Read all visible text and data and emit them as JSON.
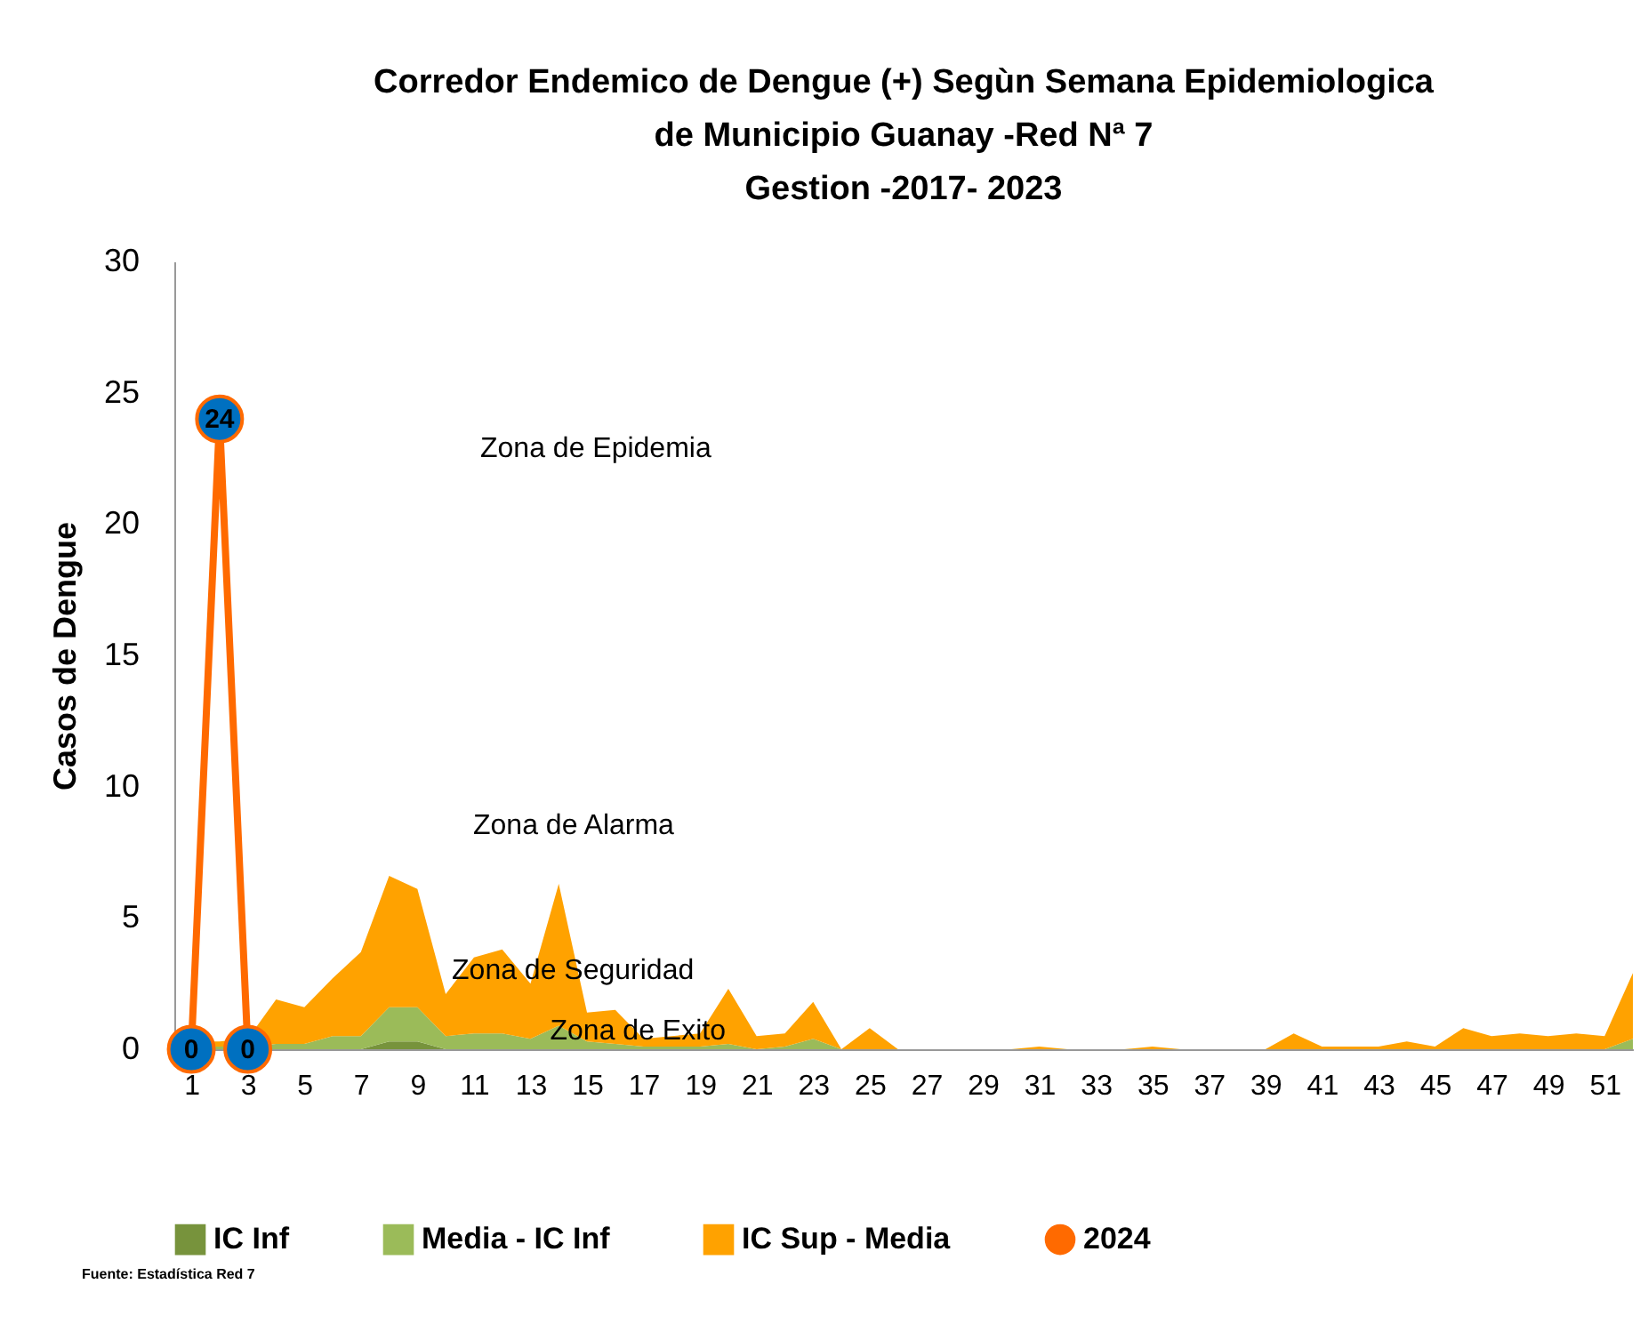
{
  "chart_data": {
    "type": "area",
    "title": "Corredor Endemico de Dengue (+) Segùn Semana Epidemiologica\nde Municipio  Guanay -Red Nª 7\nGestion -2017- 2023",
    "ylabel": "Casos de Dengue",
    "stacked": true,
    "legend": "bottom",
    "x": [
      1,
      2,
      3,
      4,
      5,
      6,
      7,
      8,
      9,
      10,
      11,
      12,
      13,
      14,
      15,
      16,
      17,
      18,
      19,
      20,
      21,
      22,
      23,
      24,
      25,
      26,
      27,
      28,
      29,
      30,
      31,
      32,
      33,
      34,
      35,
      36,
      37,
      38,
      39,
      40,
      41,
      42,
      43,
      44,
      45,
      46,
      47,
      48,
      49,
      50,
      51,
      52
    ],
    "xlim": [
      0.4,
      52
    ],
    "xticks": [
      1,
      3,
      5,
      7,
      9,
      11,
      13,
      15,
      17,
      19,
      21,
      23,
      25,
      27,
      29,
      31,
      33,
      35,
      37,
      39,
      41,
      43,
      45,
      47,
      49,
      51
    ],
    "ylim": [
      0,
      30
    ],
    "yticks": [
      0,
      5,
      10,
      15,
      20,
      25,
      30
    ],
    "series": [
      {
        "name": "IC Inf",
        "color": "#77933c",
        "values": [
          0,
          0,
          0,
          0,
          0,
          0,
          0,
          0.3,
          0.3,
          0,
          0,
          0,
          0,
          0,
          0,
          0,
          0,
          0,
          0,
          0,
          0,
          0,
          0,
          0,
          0,
          0,
          0,
          0,
          0,
          0,
          0,
          0,
          0,
          0,
          0,
          0,
          0,
          0,
          0,
          0,
          0,
          0,
          0,
          0,
          0,
          0,
          0,
          0,
          0,
          0,
          0,
          0
        ]
      },
      {
        "name": "Media - IC Inf",
        "color": "#9bbb59",
        "values": [
          0.1,
          0.1,
          0.1,
          0.2,
          0.2,
          0.5,
          0.5,
          1.3,
          1.3,
          0.5,
          0.6,
          0.6,
          0.4,
          0.9,
          0.3,
          0.2,
          0.1,
          0.1,
          0.1,
          0.2,
          0,
          0.1,
          0.4,
          0,
          0,
          0,
          0,
          0,
          0,
          0,
          0,
          0,
          0,
          0,
          0,
          0,
          0,
          0,
          0,
          0,
          0,
          0,
          0,
          0,
          0,
          0,
          0,
          0,
          0,
          0,
          0,
          0.4
        ]
      },
      {
        "name": "IC Sup - Media",
        "color": "#ffa200",
        "values": [
          0.2,
          0.2,
          0.3,
          1.7,
          1.4,
          2.2,
          3.2,
          5.0,
          4.5,
          1.6,
          2.9,
          3.2,
          2.1,
          5.4,
          1.1,
          1.3,
          0.3,
          0.4,
          0.5,
          2.1,
          0.5,
          0.5,
          1.4,
          0,
          0.8,
          0,
          0,
          0,
          0,
          0,
          0.1,
          0,
          0,
          0,
          0.1,
          0,
          0,
          0,
          0,
          0.6,
          0.1,
          0.1,
          0.1,
          0.3,
          0.1,
          0.8,
          0.5,
          0.6,
          0.5,
          0.6,
          0.5,
          2.5
        ]
      },
      {
        "name": "2024",
        "type": "line",
        "marker": "circle",
        "color": "#ff6a00",
        "values": [
          0,
          24,
          0,
          null,
          null,
          null,
          null,
          null,
          null,
          null,
          null,
          null,
          null,
          null,
          null,
          null,
          null,
          null,
          null,
          null,
          null,
          null,
          null,
          null,
          null,
          null,
          null,
          null,
          null,
          null,
          null,
          null,
          null,
          null,
          null,
          null,
          null,
          null,
          null,
          null,
          null,
          null,
          null,
          null,
          null,
          null,
          null,
          null,
          null,
          null,
          null,
          null
        ],
        "value_labels": [
          "0",
          "24",
          "0",
          null,
          null,
          null,
          null,
          null,
          null,
          null,
          null,
          null,
          null,
          null,
          null,
          null,
          null,
          null,
          null,
          null,
          null,
          null,
          null,
          null,
          null,
          null,
          null,
          null,
          null,
          null,
          null,
          null,
          null,
          null,
          null,
          null,
          null,
          null,
          null,
          null,
          null,
          null,
          null,
          null,
          null,
          null,
          null,
          null,
          null,
          null,
          null,
          null
        ]
      }
    ],
    "annotations": [
      "Zona de Epidemia",
      "Zona de Alarma",
      {
        "text": "Zona de Seguridad",
        "x": 14.5,
        "y": 3.0
      },
      {
        "text": "Zona de Exito",
        "x": 16.8,
        "y": 0.7
      },
      "Fuente:  Estadística   Red 7"
    ]
  }
}
